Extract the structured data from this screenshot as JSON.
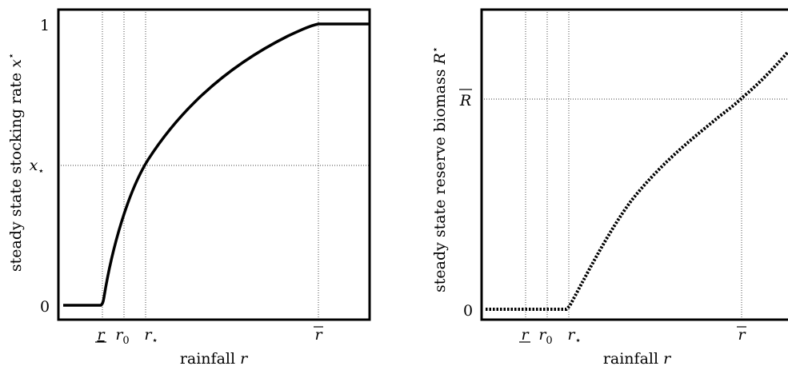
{
  "chart_data": [
    {
      "type": "line",
      "ylabel": "steady state stocking rate x*",
      "ylabel_html": "steady state stocking rate <tspan font-style='italic'>x</tspan><tspan dy='-8' font-size='13'>⋆</tspan>",
      "xlabel": "rainfall r",
      "x_ticks": [
        "r",
        "r0",
        "r⋆",
        "r̄"
      ],
      "y_ticks": [
        "0",
        "x⋆",
        "1"
      ],
      "ylim": [
        0,
        1
      ],
      "x": [
        0.0,
        0.14,
        0.15,
        0.2,
        0.25,
        0.3,
        0.35,
        0.4,
        0.45,
        0.5,
        0.55,
        0.6,
        0.65,
        0.7,
        0.75,
        0.8,
        0.85,
        1.0
      ],
      "y": [
        0.0,
        0.0,
        0.02,
        0.35,
        0.53,
        0.63,
        0.7,
        0.75,
        0.79,
        0.83,
        0.86,
        0.89,
        0.92,
        0.95,
        0.97,
        0.99,
        1.0,
        1.0
      ],
      "series_style": "solid",
      "grid_refs": {
        "x": [
          "r",
          "r0",
          "r⋆",
          "r̄"
        ],
        "y": [
          "x⋆"
        ]
      }
    },
    {
      "type": "line",
      "ylabel": "steady state reserve biomass R*",
      "xlabel": "rainfall r",
      "x_ticks": [
        "r",
        "r0",
        "r⋆",
        "r̄"
      ],
      "y_ticks": [
        "0",
        "R̄"
      ],
      "x": [
        0.0,
        0.27,
        0.3,
        0.35,
        0.4,
        0.45,
        0.5,
        0.55,
        0.6,
        0.65,
        0.7,
        0.75,
        0.8,
        0.85,
        0.9,
        0.95,
        1.0
      ],
      "y": [
        0.0,
        0.0,
        0.04,
        0.11,
        0.17,
        0.24,
        0.3,
        0.35,
        0.4,
        0.45,
        0.5,
        0.54,
        0.58,
        0.62,
        0.67,
        0.75,
        0.84
      ],
      "series_style": "dotted",
      "grid_refs": {
        "x": [
          "r",
          "r0",
          "r⋆",
          "r̄"
        ],
        "y": [
          "R̄"
        ]
      }
    }
  ]
}
